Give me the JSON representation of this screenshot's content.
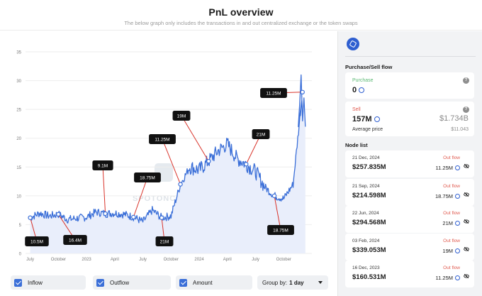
{
  "header": {
    "title": "PnL overview",
    "subtitle": "The below graph only includes the transactions in and out centralized exchange or the token swaps"
  },
  "colors": {
    "line": "#3b6fd8",
    "area": "#e9eefb",
    "accent": "#2f5fd0",
    "outflow": "#e05a4f",
    "purchase": "#5bb974",
    "callout": "#d9342b"
  },
  "watermark": "SPOTONCHAIN",
  "chart_data": {
    "type": "area",
    "title": "PnL overview",
    "ylim": [
      0,
      35
    ],
    "y_ticks": [
      "0",
      "5",
      "10",
      "15",
      "20",
      "25",
      "30",
      "35"
    ],
    "x_ticks": [
      "July",
      "October",
      "2023",
      "April",
      "July",
      "October",
      "2024",
      "April",
      "July",
      "October"
    ],
    "x_range": [
      "2022-06",
      "2024-12"
    ],
    "series": [
      {
        "name": "Amount",
        "x": [
          "2022-07",
          "2022-08",
          "2022-09",
          "2022-10",
          "2022-11",
          "2022-12",
          "2023-01",
          "2023-02",
          "2023-03",
          "2023-04",
          "2023-05",
          "2023-06",
          "2023-07",
          "2023-08",
          "2023-09",
          "2023-10",
          "2023-11",
          "2023-12",
          "2024-01",
          "2024-02",
          "2024-03",
          "2024-04",
          "2024-05",
          "2024-06",
          "2024-07",
          "2024-08",
          "2024-09",
          "2024-10",
          "2024-11",
          "2024-12"
        ],
        "values": [
          6.2,
          7.0,
          6.5,
          6.8,
          5.9,
          6.1,
          6.3,
          7.2,
          6.9,
          7.0,
          6.8,
          6.3,
          5.5,
          7.5,
          6.2,
          6.5,
          12.0,
          15.0,
          14.5,
          16.0,
          17.8,
          19.0,
          16.5,
          15.5,
          14.2,
          11.5,
          10.0,
          9.5,
          12.0,
          28.0
        ]
      }
    ],
    "annotations": [
      {
        "label": "10.5M",
        "date": "2022-07"
      },
      {
        "label": "16.4M",
        "date": "2022-10"
      },
      {
        "label": "9.1M",
        "date": "2023-03"
      },
      {
        "label": "18.75M",
        "date": "2023-06"
      },
      {
        "label": "21M",
        "date": "2023-09"
      },
      {
        "label": "11.25M",
        "date": "2023-11"
      },
      {
        "label": "19M",
        "date": "2024-02"
      },
      {
        "label": "21M",
        "date": "2024-06"
      },
      {
        "label": "18.75M",
        "date": "2024-09"
      },
      {
        "label": "11.25M",
        "date": "2024-12"
      }
    ]
  },
  "legend": {
    "inflow": "Inflow",
    "outflow": "Outflow",
    "amount": "Amount",
    "group_by_label": "Group by:",
    "group_by_value": "1 day"
  },
  "sidebar": {
    "flow_title": "Purchase/Sell flow",
    "purchase": {
      "label": "Purchase",
      "value": "0",
      "help": "?"
    },
    "sell": {
      "label": "Sell",
      "amount": "157M",
      "usd": "$1.734B",
      "help": "?"
    },
    "average_price": {
      "label": "Average price",
      "value": "$11.043"
    },
    "node_list_title": "Node list",
    "nodes": [
      {
        "date": "21 Dec, 2024",
        "flow": "Out flow",
        "amount": "$257.835M",
        "tokens": "11.25M"
      },
      {
        "date": "21 Sep, 2024",
        "flow": "Out flow",
        "amount": "$214.598M",
        "tokens": "18.75M"
      },
      {
        "date": "22 Jun, 2024",
        "flow": "Out flow",
        "amount": "$294.568M",
        "tokens": "21M"
      },
      {
        "date": "03 Feb, 2024",
        "flow": "Out flow",
        "amount": "$339.053M",
        "tokens": "19M"
      },
      {
        "date": "16 Dec, 2023",
        "flow": "Out flow",
        "amount": "$160.531M",
        "tokens": "11.25M"
      }
    ]
  }
}
